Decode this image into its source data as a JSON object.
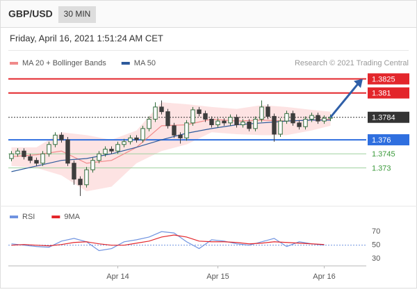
{
  "header": {
    "symbol": "GBP/USD",
    "interval": "30 MIN",
    "datetime": "Friday, April 16, 2021 1:51:24 AM CET",
    "credit": "Research © 2021 Trading Central"
  },
  "chart_data": [
    {
      "type": "candlestick",
      "categories": [
        null,
        null,
        null,
        null,
        null,
        null,
        null,
        null,
        null,
        null,
        null,
        null,
        null,
        null,
        null,
        null,
        null,
        "Apr 14",
        null,
        null,
        null,
        null,
        null,
        null,
        null,
        null,
        null,
        null,
        null,
        null,
        null,
        null,
        null,
        "Apr 15",
        null,
        null,
        null,
        null,
        null,
        null,
        null,
        null,
        null,
        null,
        null,
        null,
        null,
        null,
        null,
        null,
        "Apr 16",
        null
      ],
      "open": [
        1.374,
        1.3745,
        1.3748,
        1.3742,
        1.3738,
        1.3735,
        1.3745,
        1.3755,
        1.3765,
        1.376,
        1.3735,
        1.3718,
        1.3712,
        1.3728,
        1.3738,
        1.3745,
        1.375,
        1.3748,
        1.3755,
        1.3758,
        1.3762,
        1.376,
        1.3772,
        1.3782,
        1.3795,
        1.379,
        1.3775,
        1.3765,
        1.3762,
        1.3778,
        1.3792,
        1.3788,
        1.3782,
        1.3776,
        1.378,
        1.3778,
        1.3784,
        1.3776,
        1.3779,
        1.3772,
        1.3782,
        1.3795,
        1.3785,
        1.3766,
        1.378,
        1.3788,
        1.3778,
        1.3774,
        1.3782,
        1.3786,
        1.378,
        1.3783
      ],
      "high": [
        1.3748,
        1.3751,
        1.3751,
        1.3745,
        1.3741,
        1.3748,
        1.3758,
        1.3768,
        1.3768,
        1.3763,
        1.3738,
        1.3721,
        1.3731,
        1.3741,
        1.3748,
        1.3753,
        1.3753,
        1.3758,
        1.3761,
        1.3765,
        1.3765,
        1.3775,
        1.3785,
        1.38,
        1.3802,
        1.3793,
        1.3778,
        1.3768,
        1.3781,
        1.3795,
        1.3795,
        1.3791,
        1.3785,
        1.3783,
        1.3783,
        1.3787,
        1.3787,
        1.3782,
        1.3782,
        1.3785,
        1.3802,
        1.3798,
        1.3788,
        1.3783,
        1.3791,
        1.3791,
        1.3781,
        1.3785,
        1.3789,
        1.3789,
        1.3786,
        1.3787
      ],
      "low": [
        1.3737,
        1.3742,
        1.3739,
        1.3735,
        1.3732,
        1.3732,
        1.3742,
        1.3752,
        1.3757,
        1.3732,
        1.3712,
        1.37,
        1.3709,
        1.3725,
        1.3735,
        1.3742,
        1.3745,
        1.3745,
        1.3752,
        1.3755,
        1.3757,
        1.3757,
        1.3769,
        1.3779,
        1.3787,
        1.3772,
        1.3762,
        1.3756,
        1.3759,
        1.3775,
        1.3785,
        1.3779,
        1.3773,
        1.3773,
        1.3775,
        1.3775,
        1.3773,
        1.3773,
        1.3769,
        1.3769,
        1.3779,
        1.3782,
        1.3758,
        1.3763,
        1.3777,
        1.3775,
        1.3771,
        1.3771,
        1.3779,
        1.3777,
        1.3777,
        1.378
      ],
      "close": [
        1.3745,
        1.3748,
        1.3742,
        1.3738,
        1.3735,
        1.3745,
        1.3755,
        1.3765,
        1.376,
        1.3735,
        1.3718,
        1.3712,
        1.3728,
        1.3738,
        1.3745,
        1.375,
        1.3748,
        1.3755,
        1.3758,
        1.3762,
        1.376,
        1.3772,
        1.3782,
        1.3795,
        1.379,
        1.3775,
        1.3765,
        1.3762,
        1.3778,
        1.3792,
        1.3788,
        1.3782,
        1.3776,
        1.378,
        1.3778,
        1.3784,
        1.3776,
        1.3779,
        1.3772,
        1.3782,
        1.3795,
        1.3785,
        1.3766,
        1.378,
        1.3788,
        1.3778,
        1.3774,
        1.3782,
        1.3786,
        1.378,
        1.3783,
        1.3784
      ],
      "up_color": "#2f6b3a",
      "down_color": "#3d3d3d",
      "ylim": [
        1.3694,
        1.3835
      ],
      "series": [
        {
          "name": "MA 20 + Bollinger Bands",
          "color": "#f08a8a",
          "band_color": "#fde3e3",
          "x": [
            0,
            4,
            8,
            12,
            16,
            20,
            24,
            28,
            32,
            36,
            40,
            44,
            48,
            51
          ],
          "values": [
            1.3742,
            1.3744,
            1.3748,
            1.3735,
            1.3738,
            1.3752,
            1.3775,
            1.3776,
            1.3782,
            1.378,
            1.3781,
            1.378,
            1.3781,
            1.3782
          ],
          "upper": [
            1.3752,
            1.3752,
            1.3768,
            1.3765,
            1.376,
            1.377,
            1.38,
            1.3798,
            1.3795,
            1.3793,
            1.3797,
            1.3795,
            1.3792,
            1.379
          ],
          "lower": [
            1.3732,
            1.373,
            1.3722,
            1.3705,
            1.371,
            1.3735,
            1.3748,
            1.3755,
            1.3768,
            1.3766,
            1.3765,
            1.3765,
            1.377,
            1.3775
          ]
        },
        {
          "name": "MA 50",
          "color": "#2d5a9c",
          "x": [
            0,
            4,
            8,
            12,
            16,
            20,
            24,
            28,
            32,
            36,
            40,
            44,
            48,
            51
          ],
          "values": [
            1.3726,
            1.3732,
            1.3738,
            1.374,
            1.3745,
            1.3752,
            1.376,
            1.3767,
            1.3772,
            1.3776,
            1.3778,
            1.378,
            1.3781,
            1.3781
          ]
        }
      ],
      "levels": [
        {
          "value": 1.3825,
          "color": "#e3262b",
          "boxed": true
        },
        {
          "value": 1.381,
          "color": "#e3262b",
          "boxed": true
        },
        {
          "value": 1.3784,
          "color": "#333333",
          "boxed": true,
          "dotted": true
        },
        {
          "value": 1.376,
          "color": "#2f6fdf",
          "boxed": true
        },
        {
          "value": 1.3745,
          "color": "#3a9a3a",
          "boxed": false
        },
        {
          "value": 1.373,
          "color": "#3a9a3a",
          "boxed": false
        }
      ],
      "arrow_color": "#2f5fa8"
    },
    {
      "type": "line",
      "ylim": [
        22,
        106
      ],
      "yticks": [
        30,
        50,
        70
      ],
      "dotted_tick": 1,
      "series": [
        {
          "name": "RSI",
          "color": "#6f93e0",
          "x": [
            0,
            2,
            4,
            6,
            8,
            10,
            12,
            14,
            16,
            18,
            20,
            22,
            24,
            26,
            28,
            30,
            32,
            34,
            36,
            38,
            40,
            42,
            44,
            46,
            48,
            50
          ],
          "values": [
            52,
            50,
            48,
            47,
            56,
            60,
            55,
            42,
            45,
            55,
            58,
            62,
            70,
            68,
            55,
            45,
            58,
            56,
            52,
            50,
            55,
            60,
            48,
            55,
            52,
            50
          ]
        },
        {
          "name": "9MA",
          "color": "#e3262b",
          "x": [
            0,
            2,
            4,
            6,
            8,
            10,
            12,
            14,
            16,
            18,
            20,
            22,
            24,
            26,
            28,
            30,
            32,
            34,
            36,
            38,
            40,
            42,
            44,
            46,
            48,
            50
          ],
          "values": [
            50,
            51,
            50,
            49,
            51,
            54,
            55,
            52,
            50,
            50,
            53,
            56,
            62,
            65,
            62,
            56,
            55,
            55,
            54,
            52,
            53,
            55,
            54,
            53,
            52,
            51
          ]
        }
      ]
    }
  ]
}
